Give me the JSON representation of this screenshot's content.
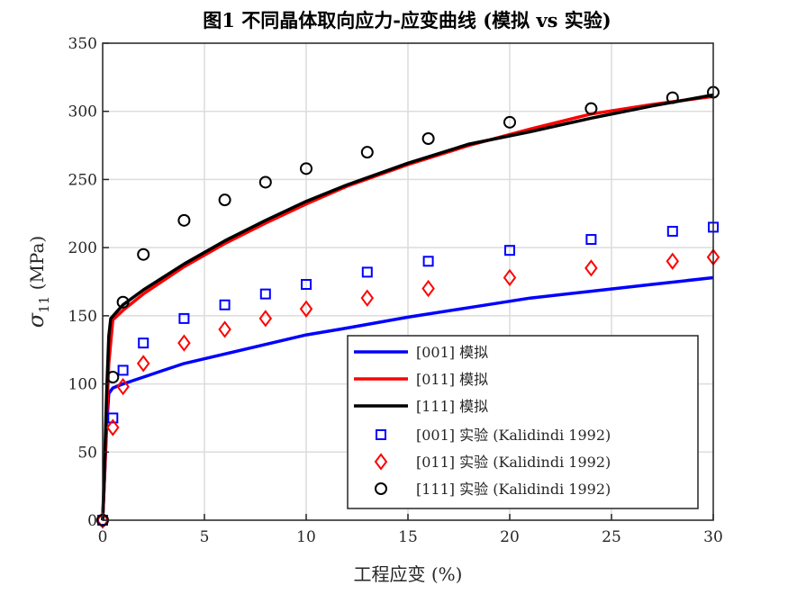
{
  "chart_data": {
    "type": "line",
    "title": "图1  不同晶体取向应力-应变曲线 (模拟 vs 实验)",
    "xlabel": "工程应变 (%)",
    "ylabel_symbol": "σ",
    "ylabel_sub": "11",
    "ylabel_unit": "(MPa)",
    "xlim": [
      0,
      30
    ],
    "ylim": [
      0,
      350
    ],
    "xticks": [
      "0",
      "5",
      "10",
      "15",
      "20",
      "25",
      "30"
    ],
    "yticks": [
      "0",
      "50",
      "100",
      "150",
      "200",
      "250",
      "300",
      "350"
    ],
    "grid": true,
    "legend_position": "bottom-right",
    "simulated": [
      {
        "name": "[001] 模拟",
        "color": "#0000ff",
        "x": [
          0,
          0.1,
          0.2,
          0.3,
          0.5,
          1,
          2,
          3,
          4,
          6,
          8,
          10,
          12,
          15,
          18,
          21,
          24,
          27,
          30
        ],
        "y": [
          0,
          35,
          70,
          93,
          97,
          100,
          105,
          110,
          115,
          122,
          129,
          136,
          141,
          149,
          156,
          163,
          168,
          173,
          178
        ]
      },
      {
        "name": "[011] 模拟",
        "color": "#ff0000",
        "x": [
          0,
          0.1,
          0.2,
          0.3,
          0.5,
          1,
          2,
          4,
          6,
          8,
          10,
          12,
          15,
          18,
          21,
          24,
          27,
          30
        ],
        "y": [
          0,
          35,
          75,
          115,
          147,
          154,
          166,
          186,
          203,
          218,
          232,
          245,
          261,
          275,
          287,
          298,
          305,
          311
        ]
      },
      {
        "name": "[111] 模拟",
        "color": "#000000",
        "x": [
          0,
          0.1,
          0.2,
          0.3,
          0.4,
          1,
          2,
          4,
          6,
          8,
          10,
          12,
          15,
          18,
          21,
          24,
          27,
          30
        ],
        "y": [
          0,
          45,
          95,
          135,
          148,
          158,
          169,
          188,
          205,
          220,
          234,
          246,
          262,
          276,
          285,
          295,
          304,
          312
        ]
      }
    ],
    "experimental": [
      {
        "name": "[001] 实验 (Kalidindi 1992)",
        "color": "#0000ff",
        "marker": "square",
        "x": [
          0,
          0.5,
          1,
          2,
          4,
          6,
          8,
          10,
          13,
          16,
          20,
          24,
          28,
          30
        ],
        "y": [
          0,
          75,
          110,
          130,
          148,
          158,
          166,
          173,
          182,
          190,
          198,
          206,
          212,
          215
        ]
      },
      {
        "name": "[011] 实验 (Kalidindi 1992)",
        "color": "#ff0000",
        "marker": "diamond",
        "x": [
          0,
          0.5,
          1,
          2,
          4,
          6,
          8,
          10,
          13,
          16,
          20,
          24,
          28,
          30
        ],
        "y": [
          0,
          68,
          98,
          115,
          130,
          140,
          148,
          155,
          163,
          170,
          178,
          185,
          190,
          193
        ]
      },
      {
        "name": "[111] 实验 (Kalidindi 1992)",
        "color": "#000000",
        "marker": "circle",
        "x": [
          0,
          0.5,
          1,
          2,
          4,
          6,
          8,
          10,
          13,
          16,
          20,
          24,
          28,
          30
        ],
        "y": [
          0,
          105,
          160,
          195,
          220,
          235,
          248,
          258,
          270,
          280,
          292,
          302,
          310,
          314
        ]
      }
    ]
  }
}
